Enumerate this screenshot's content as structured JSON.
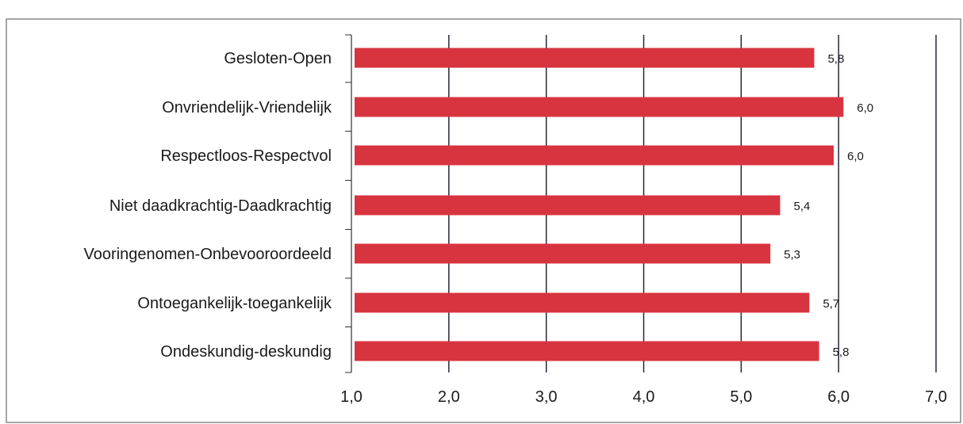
{
  "chart_data": {
    "type": "bar",
    "orientation": "horizontal",
    "categories": [
      "Gesloten-Open",
      "Onvriendelijk-Vriendelijk",
      "Respectloos-Respectvol",
      "Niet daadkrachtig-Daadkrachtig",
      "Vooringenomen-Onbevooroordeeld",
      "Ontoegankelijk-toegankelijk",
      "Ondeskundig-deskundig"
    ],
    "values": [
      5.75,
      6.05,
      5.95,
      5.4,
      5.3,
      5.7,
      5.8
    ],
    "data_labels": [
      "5,8",
      "6,0",
      "6,0",
      "5,4",
      "5,3",
      "5,7",
      "5,8"
    ],
    "xlim": [
      1,
      7
    ],
    "xticks": [
      "1,0",
      "2,0",
      "3,0",
      "4,0",
      "5,0",
      "6,0",
      "7,0"
    ],
    "title": "",
    "xlabel": "",
    "ylabel": "",
    "grid": "vertical",
    "legend": "none",
    "colors": {
      "bar": "#d8343f",
      "grid": "#1a1a2e",
      "text": "#1a1a1a"
    }
  }
}
